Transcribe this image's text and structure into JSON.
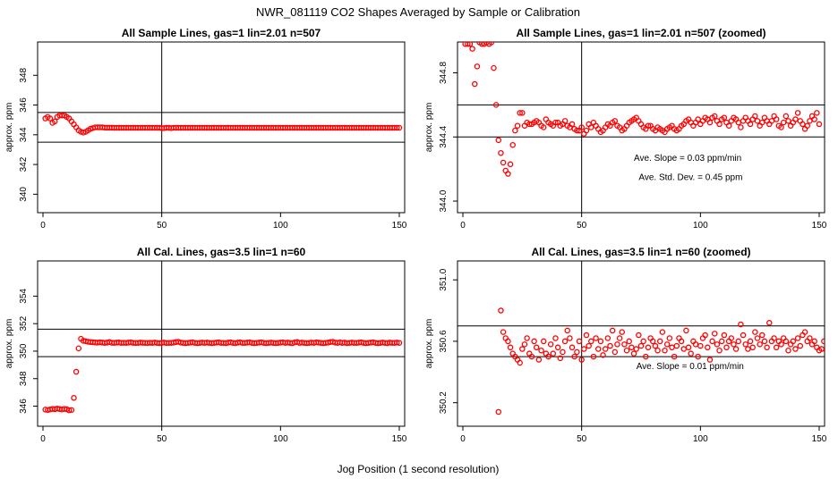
{
  "figure": {
    "title": "NWR_081119  CO2 Shapes Averaged by Sample or Calibration",
    "xlabel": "Jog Position (1 second resolution)"
  },
  "colors": {
    "points": "#ff0000",
    "axes": "#000000",
    "background": "#ffffff"
  },
  "chart_data": [
    {
      "type": "scatter",
      "title": "All Sample Lines, gas=1 lin=2.01 n=507",
      "ylabel": "approx. ppm",
      "xlim": [
        0,
        150
      ],
      "ylim": [
        339,
        350
      ],
      "xticks": [
        0,
        50,
        100,
        150
      ],
      "yticks": [
        340,
        342,
        344,
        346,
        348
      ],
      "hlines": [
        343.5,
        345.5
      ],
      "vlines": [
        50
      ],
      "annotations": [],
      "series": [
        {
          "x_start": 1,
          "x_step": 1,
          "y": [
            345.1,
            345.2,
            345.1,
            344.8,
            344.9,
            345.2,
            345.3,
            345.3,
            345.3,
            345.2,
            345.1,
            344.9,
            344.7,
            344.5,
            344.3,
            344.2,
            344.15,
            344.2,
            344.3,
            344.4,
            344.45,
            344.5,
            344.5,
            344.5,
            344.5,
            344.48,
            344.48,
            344.48,
            344.48,
            344.47,
            344.47,
            344.47,
            344.47,
            344.47,
            344.47,
            344.47,
            344.47,
            344.47,
            344.47,
            344.47,
            344.47,
            344.47,
            344.47,
            344.47,
            344.47,
            344.47,
            344.47,
            344.47,
            344.47,
            344.45,
            344.45,
            344.47,
            344.47,
            344.45,
            344.47,
            344.47,
            344.47,
            344.47,
            344.47,
            344.47,
            344.47,
            344.47,
            344.47,
            344.47,
            344.47,
            344.47,
            344.47,
            344.47,
            344.47,
            344.47,
            344.47,
            344.47,
            344.47,
            344.47,
            344.47,
            344.47,
            344.47,
            344.47,
            344.47,
            344.47,
            344.47,
            344.47,
            344.47,
            344.47,
            344.47,
            344.47,
            344.47,
            344.47,
            344.47,
            344.47,
            344.47,
            344.47,
            344.47,
            344.47,
            344.47,
            344.47,
            344.47,
            344.47,
            344.47,
            344.47,
            344.47,
            344.47,
            344.47,
            344.47,
            344.47,
            344.47,
            344.47,
            344.47,
            344.47,
            344.47,
            344.47,
            344.47,
            344.47,
            344.47,
            344.47,
            344.47,
            344.47,
            344.47,
            344.47,
            344.47,
            344.47,
            344.47,
            344.47,
            344.47,
            344.47,
            344.47,
            344.47,
            344.47,
            344.47,
            344.47,
            344.47,
            344.47,
            344.47,
            344.47,
            344.47,
            344.47,
            344.47,
            344.47,
            344.47,
            344.47,
            344.47,
            344.47,
            344.47,
            344.47,
            344.47,
            344.47,
            344.47,
            344.47,
            344.47,
            344.47
          ]
        }
      ]
    },
    {
      "type": "scatter",
      "title": "All Sample Lines, gas=1 lin=2.01 n=507 (zoomed)",
      "ylabel": "approx. ppm",
      "xlim": [
        0,
        150
      ],
      "ylim": [
        343.95,
        344.97
      ],
      "xticks": [
        0,
        50,
        100,
        150
      ],
      "yticks": [
        344.0,
        344.4,
        344.8
      ],
      "ytick_decimals": 1,
      "hlines": [
        344.4,
        344.6
      ],
      "vlines": [
        50
      ],
      "annotations": [
        {
          "text": "Ave. Slope =  0.03  ppm/min",
          "x": 72,
          "y": 344.25
        },
        {
          "text": "Ave. Std. Dev. =  0.45  ppm",
          "x": 74,
          "y": 344.13
        }
      ],
      "series": [
        {
          "x_start": 1,
          "x_step": 1,
          "y": [
            344.98,
            344.98,
            344.98,
            344.95,
            344.73,
            344.84,
            344.99,
            344.98,
            344.98,
            344.99,
            344.98,
            344.99,
            344.83,
            344.6,
            344.38,
            344.3,
            344.24,
            344.19,
            344.17,
            344.23,
            344.35,
            344.44,
            344.47,
            344.55,
            344.55,
            344.47,
            344.49,
            344.48,
            344.48,
            344.49,
            344.5,
            344.49,
            344.47,
            344.46,
            344.51,
            344.49,
            344.48,
            344.47,
            344.49,
            344.49,
            344.47,
            344.48,
            344.5,
            344.47,
            344.46,
            344.48,
            344.45,
            344.44,
            344.44,
            344.46,
            344.42,
            344.44,
            344.48,
            344.46,
            344.49,
            344.47,
            344.45,
            344.43,
            344.44,
            344.46,
            344.48,
            344.47,
            344.49,
            344.5,
            344.47,
            344.46,
            344.44,
            344.45,
            344.47,
            344.49,
            344.5,
            344.51,
            344.52,
            344.5,
            344.48,
            344.46,
            344.45,
            344.47,
            344.47,
            344.45,
            344.44,
            344.46,
            344.45,
            344.44,
            344.43,
            344.45,
            344.46,
            344.47,
            344.45,
            344.44,
            344.45,
            344.47,
            344.48,
            344.5,
            344.51,
            344.49,
            344.47,
            344.49,
            344.51,
            344.48,
            344.5,
            344.52,
            344.51,
            344.49,
            344.52,
            344.53,
            344.5,
            344.48,
            344.51,
            344.52,
            344.49,
            344.47,
            344.5,
            344.52,
            344.51,
            344.49,
            344.46,
            344.5,
            344.52,
            344.5,
            344.48,
            344.51,
            344.53,
            344.5,
            344.47,
            344.49,
            344.52,
            344.5,
            344.48,
            344.5,
            344.53,
            344.51,
            344.47,
            344.46,
            344.49,
            344.53,
            344.5,
            344.47,
            344.49,
            344.51,
            344.55,
            344.5,
            344.48,
            344.45,
            344.47,
            344.5,
            344.53,
            344.51,
            344.55,
            344.48
          ]
        }
      ]
    },
    {
      "type": "scatter",
      "title": "All Cal. Lines, gas=3.5 lin=1 n=60",
      "ylabel": "approx. ppm",
      "xlim": [
        0,
        150
      ],
      "ylim": [
        344.8,
        356.3
      ],
      "xticks": [
        0,
        50,
        100,
        150
      ],
      "yticks": [
        346,
        348,
        350,
        352,
        354
      ],
      "hlines": [
        349.6,
        351.6
      ],
      "vlines": [
        50
      ],
      "annotations": [],
      "series": [
        {
          "x_start": 1,
          "x_step": 1,
          "y": [
            345.75,
            345.72,
            345.76,
            345.8,
            345.78,
            345.82,
            345.79,
            345.76,
            345.8,
            345.78,
            345.7,
            345.72,
            346.6,
            348.5,
            350.2,
            350.9,
            350.75,
            350.72,
            350.68,
            350.66,
            350.65,
            350.63,
            350.62,
            350.64,
            350.62,
            350.6,
            350.62,
            350.66,
            350.61,
            350.6,
            350.62,
            350.63,
            350.6,
            350.61,
            350.6,
            350.62,
            350.64,
            350.6,
            350.59,
            350.6,
            350.62,
            350.61,
            350.6,
            350.59,
            350.61,
            350.6,
            350.62,
            350.6,
            350.58,
            350.6,
            350.62,
            350.59,
            350.6,
            350.6,
            350.62,
            350.66,
            350.68,
            350.62,
            350.6,
            350.58,
            350.6,
            350.62,
            350.64,
            350.6,
            350.58,
            350.6,
            350.62,
            350.6,
            350.62,
            350.6,
            350.58,
            350.6,
            350.62,
            350.64,
            350.6,
            350.6,
            350.58,
            350.62,
            350.64,
            350.6,
            350.58,
            350.62,
            350.64,
            350.6,
            350.6,
            350.62,
            350.64,
            350.6,
            350.58,
            350.6,
            350.62,
            350.64,
            350.6,
            350.58,
            350.6,
            350.62,
            350.6,
            350.58,
            350.6,
            350.62,
            350.64,
            350.6,
            350.62,
            350.6,
            350.58,
            350.64,
            350.66,
            350.6,
            350.62,
            350.6,
            350.58,
            350.6,
            350.62,
            350.6,
            350.64,
            350.62,
            350.6,
            350.58,
            350.6,
            350.62,
            350.66,
            350.68,
            350.62,
            350.6,
            350.64,
            350.6,
            350.62,
            350.58,
            350.6,
            350.62,
            350.6,
            350.6,
            350.62,
            350.64,
            350.6,
            350.58,
            350.6,
            350.62,
            350.64,
            350.6,
            350.58,
            350.6,
            350.62,
            350.6,
            350.58,
            350.62,
            350.6,
            350.6,
            350.62,
            350.6
          ]
        }
      ]
    },
    {
      "type": "scatter",
      "title": "All Cal. Lines, gas=3.5 lin=1 n=60 (zoomed)",
      "ylabel": "approx. ppm",
      "xlim": [
        0,
        150
      ],
      "ylim": [
        350.07,
        351.1
      ],
      "xticks": [
        0,
        50,
        100,
        150
      ],
      "yticks": [
        350.2,
        350.6,
        351.0
      ],
      "ytick_decimals": 1,
      "hlines": [
        350.5,
        350.7
      ],
      "vlines": [
        50
      ],
      "annotations": [
        {
          "text": "Ave. Slope =  0.01  ppm/min",
          "x": 73,
          "y": 350.42
        }
      ],
      "series": [
        {
          "x_start": 15,
          "x_step": 1,
          "y": [
            350.14,
            350.8,
            350.66,
            350.62,
            350.6,
            350.56,
            350.52,
            350.5,
            350.48,
            350.46,
            350.55,
            350.58,
            350.62,
            350.52,
            350.5,
            350.6,
            350.56,
            350.48,
            350.54,
            350.6,
            350.52,
            350.5,
            350.58,
            350.52,
            350.62,
            350.56,
            350.49,
            350.53,
            350.6,
            350.67,
            350.62,
            350.56,
            350.5,
            350.53,
            350.6,
            350.48,
            350.55,
            350.64,
            350.57,
            350.6,
            350.5,
            350.62,
            350.55,
            350.6,
            350.51,
            350.55,
            350.62,
            350.57,
            350.67,
            350.53,
            350.58,
            350.62,
            350.66,
            350.58,
            350.54,
            350.6,
            350.56,
            350.52,
            350.55,
            350.64,
            350.57,
            350.6,
            350.5,
            350.56,
            350.62,
            350.6,
            350.57,
            350.54,
            350.6,
            350.66,
            350.54,
            350.58,
            350.62,
            350.56,
            350.5,
            350.57,
            350.62,
            350.6,
            350.55,
            350.67,
            350.56,
            350.52,
            350.6,
            350.58,
            350.5,
            350.57,
            350.62,
            350.64,
            350.56,
            350.48,
            350.6,
            350.65,
            350.58,
            350.54,
            350.6,
            350.64,
            350.56,
            350.6,
            350.62,
            350.58,
            350.55,
            350.6,
            350.71,
            350.64,
            350.58,
            350.55,
            350.6,
            350.56,
            350.66,
            350.62,
            350.58,
            350.64,
            350.6,
            350.56,
            350.72,
            350.6,
            350.62,
            350.56,
            350.6,
            350.58,
            350.62,
            350.6,
            350.54,
            350.58,
            350.6,
            350.55,
            350.62,
            350.57,
            350.64,
            350.66,
            350.6,
            350.62,
            350.58,
            350.6,
            350.56,
            350.54,
            350.55,
            350.6,
            350.54,
            350.58,
            350.54,
            350.5,
            350.55,
            350.52,
            350.58,
            350.55,
            350.56,
            350.55
          ]
        }
      ]
    }
  ]
}
